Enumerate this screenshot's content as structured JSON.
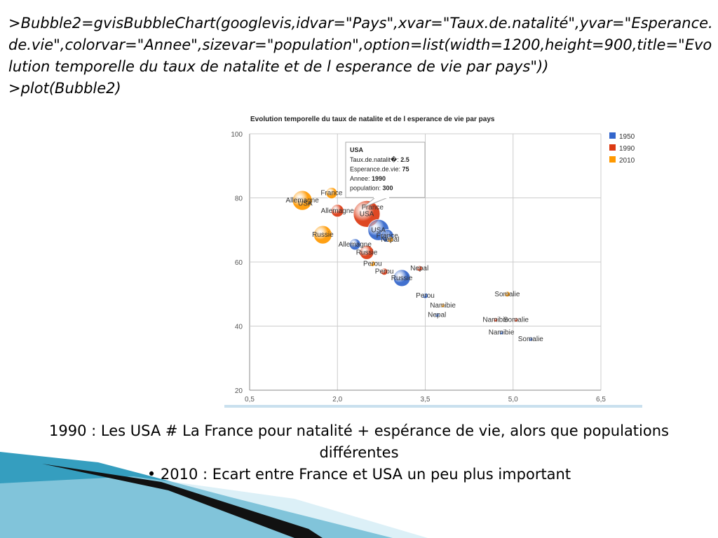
{
  "code": {
    "line1": ">Bubble2=gvisBubbleChart(googlevis,idvar=\"Pays\",xvar=\"Taux.de.natalité\",yvar=\"Esperance.de.vie\",colorvar=\"Annee\",sizevar=\"population\",option=list(width=1200,height=900,title=\"Evolution temporelle du taux de natalite et de l esperance de vie par pays\"))",
    "line2": ">plot(Bubble2)"
  },
  "chart_data": {
    "type": "bubble",
    "title": "Evolution temporelle du taux de natalite et de l esperance de vie par pays",
    "xlabel": "",
    "ylabel": "",
    "xlim": [
      0.5,
      6.5
    ],
    "ylim": [
      20,
      100
    ],
    "x_ticks": [
      "0,5",
      "2,0",
      "3,5",
      "5,0",
      "6,5"
    ],
    "y_ticks": [
      "20",
      "40",
      "60",
      "80",
      "100"
    ],
    "grid": true,
    "legend_position": "right",
    "colors": {
      "1950": "#3366cc",
      "1990": "#dc3912",
      "2010": "#ff9900"
    },
    "series": [
      {
        "name": "1950",
        "color": "#3366cc"
      },
      {
        "name": "1990",
        "color": "#dc3912"
      },
      {
        "name": "2010",
        "color": "#ff9900"
      }
    ],
    "points": [
      {
        "label": "Allemagne",
        "year": "2010",
        "x": 1.4,
        "y": 79.2,
        "r": 14
      },
      {
        "label": "USA",
        "year": "2010",
        "x": 1.45,
        "y": 78.2,
        "r": 0
      },
      {
        "label": "France",
        "year": "2010",
        "x": 1.9,
        "y": 81.5,
        "r": 8
      },
      {
        "label": "Russie",
        "year": "2010",
        "x": 1.75,
        "y": 68.5,
        "r": 13
      },
      {
        "label": "Allemagne",
        "year": "1990",
        "x": 2.0,
        "y": 76,
        "r": 9
      },
      {
        "label": "France",
        "year": "1990",
        "x": 2.6,
        "y": 77,
        "r": 0
      },
      {
        "label": "USA",
        "year": "1990",
        "x": 2.5,
        "y": 75,
        "r": 19
      },
      {
        "label": "USA",
        "year": "1950",
        "x": 2.7,
        "y": 70,
        "r": 15
      },
      {
        "label": "France",
        "year": "1950",
        "x": 2.85,
        "y": 68.2,
        "r": 9
      },
      {
        "label": "Nepal",
        "year": "2010",
        "x": 2.9,
        "y": 67,
        "r": 4
      },
      {
        "label": "Allemagne",
        "year": "1950",
        "x": 2.3,
        "y": 65.5,
        "r": 8
      },
      {
        "label": "Russie",
        "year": "1990",
        "x": 2.5,
        "y": 63,
        "r": 10
      },
      {
        "label": "Perou",
        "year": "2010",
        "x": 2.6,
        "y": 59.5,
        "r": 4
      },
      {
        "label": "Nepal",
        "year": "1990",
        "x": 3.4,
        "y": 58,
        "r": 4
      },
      {
        "label": "Perou",
        "year": "1990",
        "x": 2.8,
        "y": 57,
        "r": 5
      },
      {
        "label": "Russie",
        "year": "1950",
        "x": 3.1,
        "y": 55,
        "r": 12
      },
      {
        "label": "Perou",
        "year": "1950",
        "x": 3.5,
        "y": 49.5,
        "r": 4
      },
      {
        "label": "Namibie",
        "year": "2010",
        "x": 3.8,
        "y": 46.5,
        "r": 3
      },
      {
        "label": "Nepal",
        "year": "1950",
        "x": 3.7,
        "y": 43.5,
        "r": 3
      },
      {
        "label": "Somalie",
        "year": "2010",
        "x": 4.9,
        "y": 50,
        "r": 4
      },
      {
        "label": "Namibie",
        "year": "1990",
        "x": 4.7,
        "y": 42,
        "r": 3
      },
      {
        "label": "Somalie",
        "year": "1990",
        "x": 5.05,
        "y": 42,
        "r": 3
      },
      {
        "label": "Namibie",
        "year": "1950",
        "x": 4.8,
        "y": 38,
        "r": 3
      },
      {
        "label": "Somalie",
        "year": "1950",
        "x": 5.3,
        "y": 36,
        "r": 3
      }
    ],
    "tooltip": {
      "id": "USA",
      "lines": [
        {
          "key": "Taux.de.natalit�:",
          "val": "2.5"
        },
        {
          "key": "Esperance.de.vie:",
          "val": "75"
        },
        {
          "key": "Annee:",
          "val": "1990"
        },
        {
          "key": "population:",
          "val": "300"
        }
      ]
    }
  },
  "caption": {
    "line1": "1990 : Les USA # La France pour natalité + espérance de vie, alors que populations différentes",
    "line2": "• 2010 : Ecart entre France et USA un peu plus important"
  },
  "decor_colors": {
    "teal": "#1f93b8",
    "dark": "#111111",
    "light": "#cfe8f2"
  }
}
